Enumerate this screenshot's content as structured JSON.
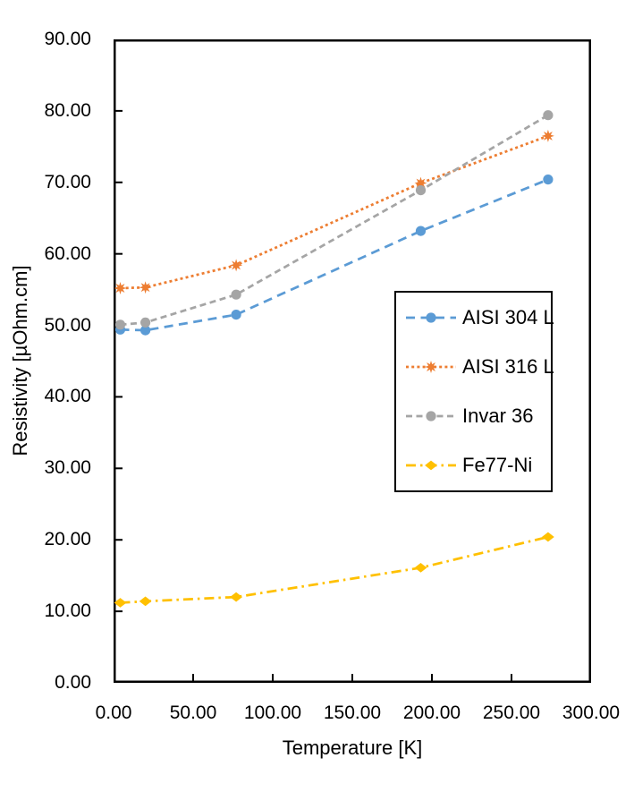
{
  "chart_data": {
    "type": "line",
    "title": "",
    "xlabel": "Temperature [K]",
    "ylabel": "Resistivity [µOhm.cm]",
    "xlim": [
      0,
      300
    ],
    "ylim": [
      0,
      90
    ],
    "grid": false,
    "legend_position": "inside-right",
    "x_tick_labels": [
      "0.00",
      "50.00",
      "100.00",
      "150.00",
      "200.00",
      "250.00",
      "300.00"
    ],
    "y_tick_labels": [
      "0.00",
      "10.00",
      "20.00",
      "30.00",
      "40.00",
      "50.00",
      "60.00",
      "70.00",
      "80.00",
      "90.00"
    ],
    "axis_color": "#000000",
    "x": [
      4.2,
      20,
      77,
      193,
      273
    ],
    "series": [
      {
        "name": "AISI 304 L",
        "color": "#5B9BD5",
        "marker": "circle",
        "dash": "long-dash",
        "values": [
          49.4,
          49.3,
          51.5,
          63.2,
          70.4
        ]
      },
      {
        "name": "AISI 316 L",
        "color": "#ED7D31",
        "marker": "star8",
        "dash": "dot",
        "values": [
          55.2,
          55.3,
          58.4,
          69.9,
          76.5
        ]
      },
      {
        "name": "Invar 36",
        "color": "#A5A5A5",
        "marker": "circle",
        "dash": "dash",
        "values": [
          50.1,
          50.4,
          54.3,
          68.9,
          79.4
        ]
      },
      {
        "name": "Fe77-Ni",
        "color": "#FFC000",
        "marker": "diamond",
        "dash": "dash-dot",
        "values": [
          11.2,
          11.4,
          12.0,
          16.1,
          20.4
        ]
      }
    ]
  }
}
